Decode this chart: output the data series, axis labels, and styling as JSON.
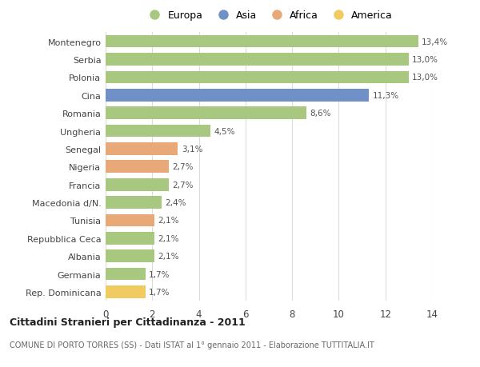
{
  "categories": [
    "Montenegro",
    "Serbia",
    "Polonia",
    "Cina",
    "Romania",
    "Ungheria",
    "Senegal",
    "Nigeria",
    "Francia",
    "Macedonia d/N.",
    "Tunisia",
    "Repubblica Ceca",
    "Albania",
    "Germania",
    "Rep. Dominicana"
  ],
  "values": [
    13.4,
    13.0,
    13.0,
    11.3,
    8.6,
    4.5,
    3.1,
    2.7,
    2.7,
    2.4,
    2.1,
    2.1,
    2.1,
    1.7,
    1.7
  ],
  "labels": [
    "13,4%",
    "13,0%",
    "13,0%",
    "11,3%",
    "8,6%",
    "4,5%",
    "3,1%",
    "2,7%",
    "2,7%",
    "2,4%",
    "2,1%",
    "2,1%",
    "2,1%",
    "1,7%",
    "1,7%"
  ],
  "continents": [
    "Europa",
    "Europa",
    "Europa",
    "Asia",
    "Europa",
    "Europa",
    "Africa",
    "Africa",
    "Europa",
    "Europa",
    "Africa",
    "Europa",
    "Europa",
    "Europa",
    "America"
  ],
  "colors": {
    "Europa": "#a8c880",
    "Asia": "#7090c8",
    "Africa": "#e8a878",
    "America": "#f0cc60"
  },
  "title": "Cittadini Stranieri per Cittadinanza - 2011",
  "subtitle": "COMUNE DI PORTO TORRES (SS) - Dati ISTAT al 1° gennaio 2011 - Elaborazione TUTTITALIA.IT",
  "xlim": [
    0,
    14
  ],
  "xticks": [
    0,
    2,
    4,
    6,
    8,
    10,
    12,
    14
  ],
  "background_color": "#ffffff",
  "bar_height": 0.7,
  "grid_color": "#dddddd"
}
